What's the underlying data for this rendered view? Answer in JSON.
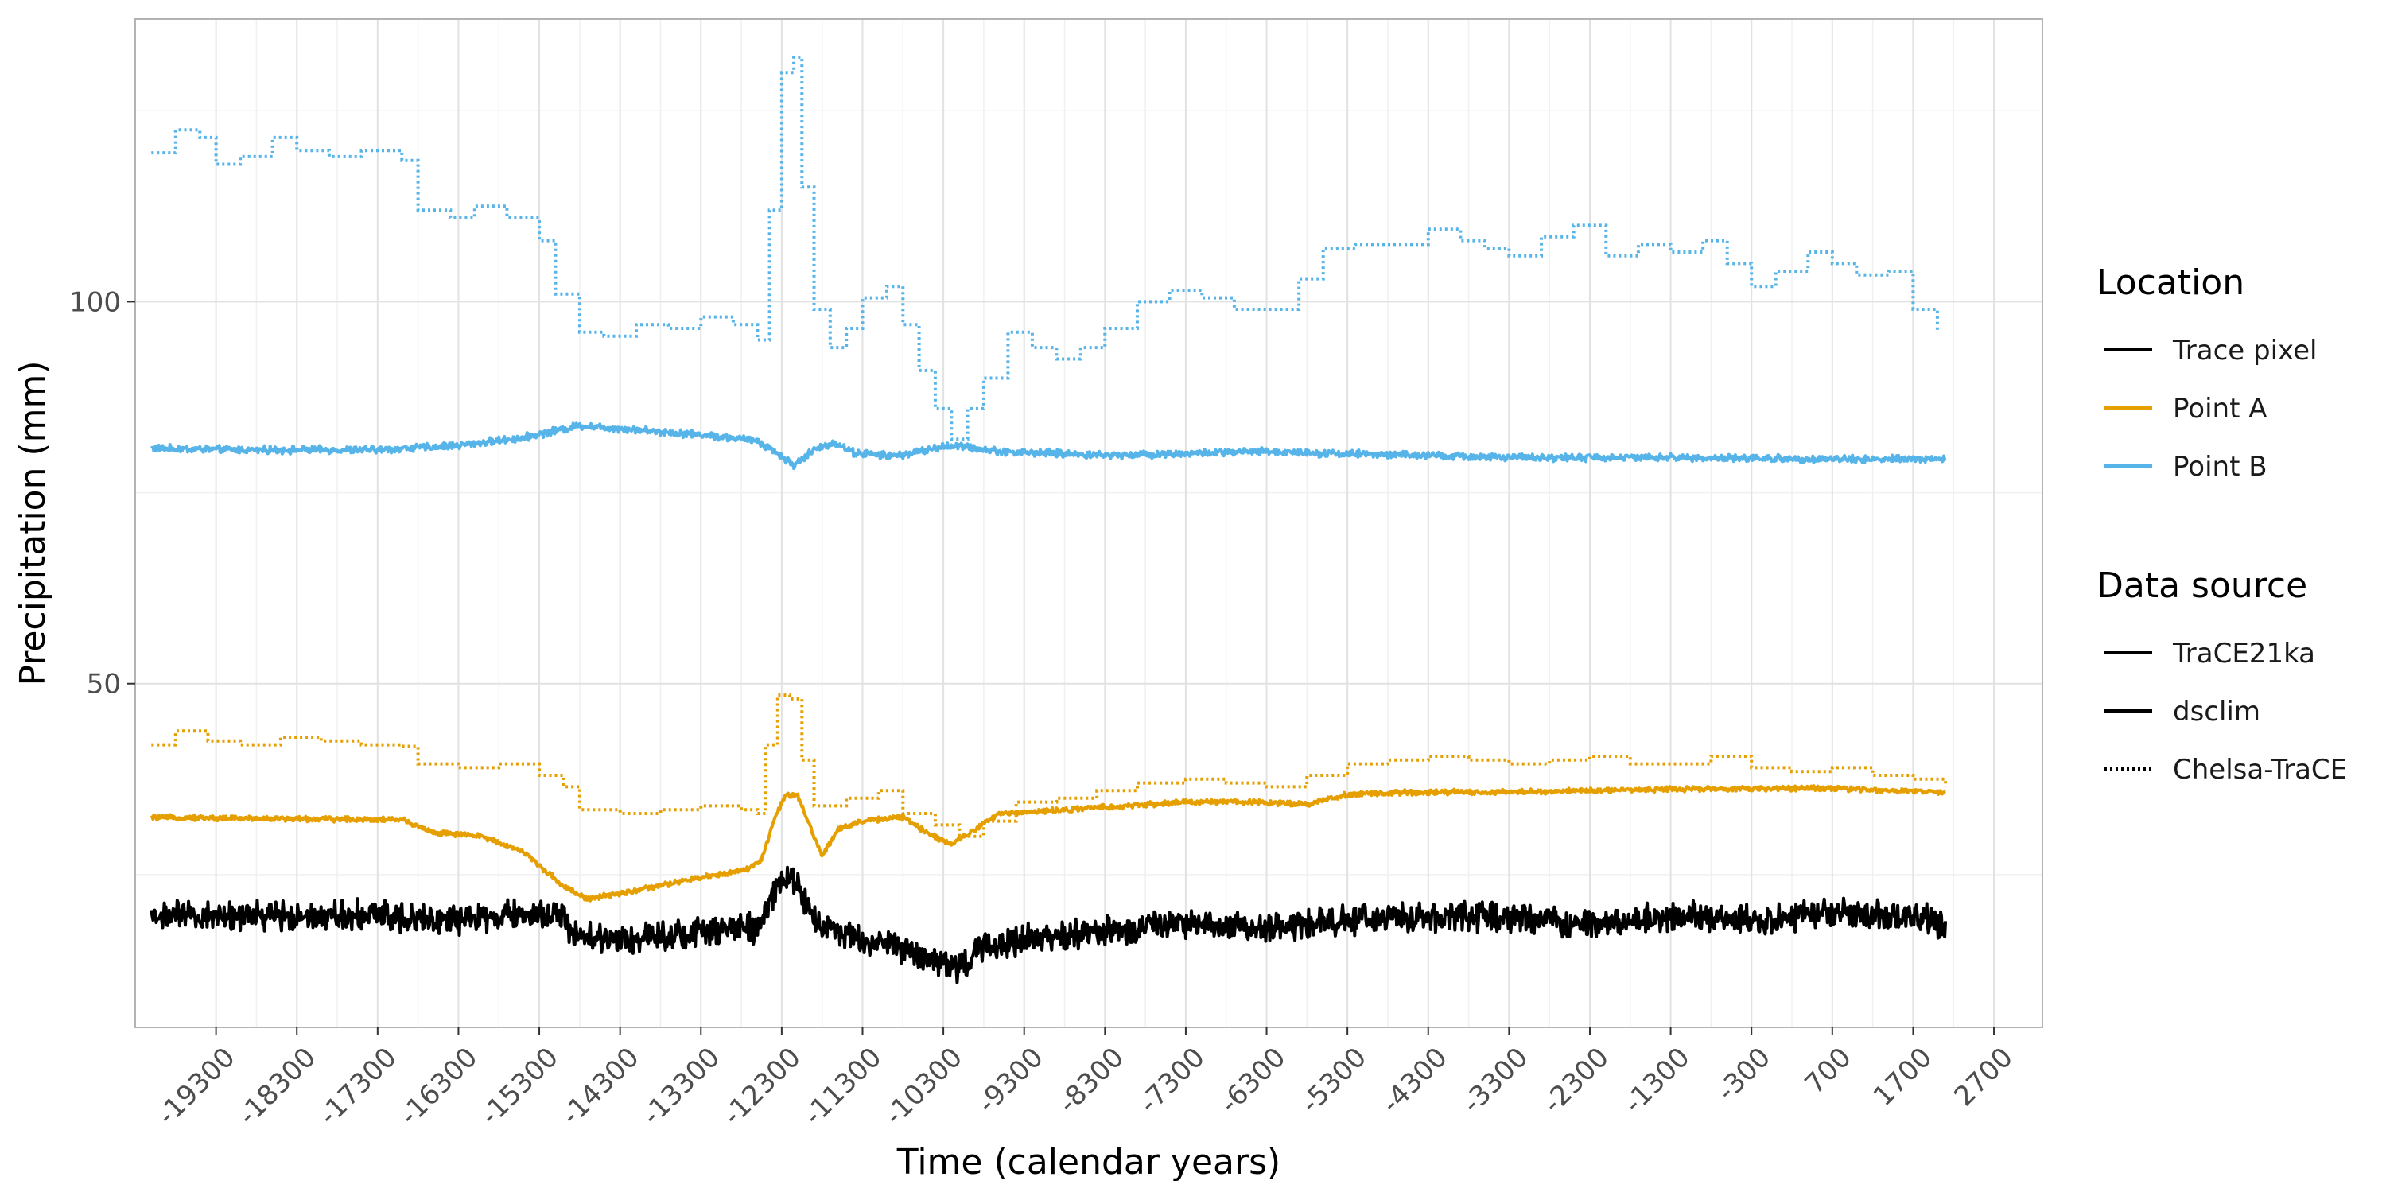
{
  "chart_data": {
    "type": "line",
    "title": "",
    "xlabel": "Time (calendar years)",
    "ylabel": "Precipitation (mm)",
    "xlim": [
      -20300,
      3300
    ],
    "ylim": [
      5,
      137
    ],
    "x_ticks": [
      -19300,
      -18300,
      -17300,
      -16300,
      -15300,
      -14300,
      -13300,
      -12300,
      -11300,
      -10300,
      -9300,
      -8300,
      -7300,
      -6300,
      -5300,
      -4300,
      -3300,
      -2300,
      -1300,
      -300,
      700,
      1700,
      2700
    ],
    "x_tick_labels": [
      "-19300",
      "-18300",
      "-17300",
      "-16300",
      "-15300",
      "-14300",
      "-13300",
      "-12300",
      "-11300",
      "-10300",
      "-9300",
      "-8300",
      "-7300",
      "-6300",
      "-5300",
      "-4300",
      "-3300",
      "-2300",
      "-1300",
      "-300",
      "700",
      "1700",
      "2700"
    ],
    "y_ticks": [
      50,
      100
    ],
    "y_tick_labels": [
      "50",
      "100"
    ],
    "grid": true,
    "legend_position": "right",
    "legends": [
      {
        "title": "Location",
        "entries": [
          {
            "label": "Trace pixel",
            "color": "#000000",
            "dash": "solid"
          },
          {
            "label": "Point A",
            "color": "#E69F00",
            "dash": "solid"
          },
          {
            "label": "Point B",
            "color": "#56B4E9",
            "dash": "solid"
          }
        ]
      },
      {
        "title": "Data source",
        "entries": [
          {
            "label": "TraCE21ka",
            "color": "#000000",
            "dash": "solid"
          },
          {
            "label": "dsclim",
            "color": "#000000",
            "dash": "solid"
          },
          {
            "label": "Chelsa-TraCE",
            "color": "#000000",
            "dash": "dotted"
          }
        ]
      }
    ],
    "series": [
      {
        "location": "Point B",
        "source": "dsclim",
        "color": "#56B4E9",
        "dash": "solid",
        "noise": 0.35,
        "points": [
          [
            -20100,
            80.8
          ],
          [
            -19000,
            80.6
          ],
          [
            -17300,
            80.6
          ],
          [
            -16300,
            81.2
          ],
          [
            -15500,
            82.2
          ],
          [
            -14800,
            83.8
          ],
          [
            -14300,
            83.4
          ],
          [
            -13300,
            82.6
          ],
          [
            -12600,
            81.8
          ],
          [
            -12400,
            80.5
          ],
          [
            -12150,
            78.6
          ],
          [
            -11900,
            80.6
          ],
          [
            -11650,
            81.6
          ],
          [
            -11400,
            80.2
          ],
          [
            -10900,
            79.8
          ],
          [
            -10400,
            80.8
          ],
          [
            -10200,
            81.2
          ],
          [
            -9600,
            80.4
          ],
          [
            -8300,
            79.9
          ],
          [
            -6300,
            80.4
          ],
          [
            -5300,
            80.1
          ],
          [
            -3300,
            79.6
          ],
          [
            -1300,
            79.6
          ],
          [
            700,
            79.4
          ],
          [
            2100,
            79.4
          ]
        ]
      },
      {
        "location": "Point B",
        "source": "Chelsa-TraCE",
        "color": "#56B4E9",
        "dash": "dotted",
        "noise": 0,
        "points": [
          [
            -20100,
            119.5
          ],
          [
            -19800,
            122.5
          ],
          [
            -19500,
            121.5
          ],
          [
            -19300,
            118.0
          ],
          [
            -19000,
            119.0
          ],
          [
            -18600,
            121.5
          ],
          [
            -18300,
            119.8
          ],
          [
            -17900,
            119.0
          ],
          [
            -17500,
            119.8
          ],
          [
            -17000,
            118.5
          ],
          [
            -16800,
            112.0
          ],
          [
            -16400,
            111.0
          ],
          [
            -16100,
            112.5
          ],
          [
            -15700,
            111.0
          ],
          [
            -15300,
            108.0
          ],
          [
            -15100,
            101.0
          ],
          [
            -14800,
            96.0
          ],
          [
            -14500,
            95.5
          ],
          [
            -14100,
            97.0
          ],
          [
            -13700,
            96.5
          ],
          [
            -13300,
            98.0
          ],
          [
            -12900,
            97.0
          ],
          [
            -12600,
            95.0
          ],
          [
            -12450,
            112.0
          ],
          [
            -12300,
            130.0
          ],
          [
            -12150,
            132.0
          ],
          [
            -12050,
            115.0
          ],
          [
            -11900,
            99.0
          ],
          [
            -11700,
            94.0
          ],
          [
            -11500,
            96.5
          ],
          [
            -11300,
            100.5
          ],
          [
            -11000,
            102.0
          ],
          [
            -10800,
            97.0
          ],
          [
            -10600,
            91.0
          ],
          [
            -10400,
            86.0
          ],
          [
            -10200,
            82.0
          ],
          [
            -10000,
            86.0
          ],
          [
            -9800,
            90.0
          ],
          [
            -9500,
            96.0
          ],
          [
            -9200,
            94.0
          ],
          [
            -8900,
            92.5
          ],
          [
            -8600,
            94.0
          ],
          [
            -8300,
            96.5
          ],
          [
            -7900,
            100.0
          ],
          [
            -7500,
            101.5
          ],
          [
            -7100,
            100.5
          ],
          [
            -6700,
            99.0
          ],
          [
            -6300,
            99.0
          ],
          [
            -5900,
            103.0
          ],
          [
            -5600,
            107.0
          ],
          [
            -5200,
            107.5
          ],
          [
            -4800,
            107.5
          ],
          [
            -4300,
            109.5
          ],
          [
            -3900,
            108.0
          ],
          [
            -3600,
            107.0
          ],
          [
            -3300,
            106.0
          ],
          [
            -2900,
            108.5
          ],
          [
            -2500,
            110.0
          ],
          [
            -2100,
            106.0
          ],
          [
            -1700,
            107.5
          ],
          [
            -1300,
            106.5
          ],
          [
            -900,
            108.0
          ],
          [
            -600,
            105.0
          ],
          [
            -300,
            102.0
          ],
          [
            0,
            104.0
          ],
          [
            400,
            106.5
          ],
          [
            700,
            105.0
          ],
          [
            1000,
            103.5
          ],
          [
            1400,
            104.0
          ],
          [
            1700,
            99.0
          ],
          [
            2000,
            96.0
          ]
        ]
      },
      {
        "location": "Point A",
        "source": "dsclim",
        "color": "#E69F00",
        "dash": "solid",
        "noise": 0.25,
        "points": [
          [
            -20100,
            32.5
          ],
          [
            -18300,
            32.3
          ],
          [
            -17000,
            32.2
          ],
          [
            -16600,
            30.5
          ],
          [
            -16000,
            30.0
          ],
          [
            -15500,
            28.0
          ],
          [
            -15000,
            23.5
          ],
          [
            -14700,
            21.8
          ],
          [
            -14300,
            22.5
          ],
          [
            -13500,
            24.2
          ],
          [
            -12700,
            25.8
          ],
          [
            -12550,
            27.0
          ],
          [
            -12400,
            32.0
          ],
          [
            -12250,
            35.5
          ],
          [
            -12100,
            35.2
          ],
          [
            -11900,
            30.0
          ],
          [
            -11800,
            27.5
          ],
          [
            -11600,
            31.0
          ],
          [
            -11300,
            32.0
          ],
          [
            -10800,
            32.5
          ],
          [
            -10500,
            30.5
          ],
          [
            -10200,
            29.0
          ],
          [
            -9900,
            31.0
          ],
          [
            -9600,
            33.0
          ],
          [
            -8300,
            33.8
          ],
          [
            -7300,
            34.5
          ],
          [
            -6300,
            34.5
          ],
          [
            -5800,
            34.2
          ],
          [
            -5300,
            35.5
          ],
          [
            -4300,
            35.8
          ],
          [
            -3300,
            35.8
          ],
          [
            -1300,
            36.2
          ],
          [
            700,
            36.3
          ],
          [
            2100,
            35.8
          ]
        ]
      },
      {
        "location": "Point A",
        "source": "Chelsa-TraCE",
        "color": "#E69F00",
        "dash": "dotted",
        "noise": 0,
        "points": [
          [
            -20100,
            42.0
          ],
          [
            -19800,
            43.8
          ],
          [
            -19400,
            42.5
          ],
          [
            -19000,
            42.0
          ],
          [
            -18500,
            43.0
          ],
          [
            -18000,
            42.5
          ],
          [
            -17500,
            42.0
          ],
          [
            -17000,
            41.8
          ],
          [
            -16800,
            39.5
          ],
          [
            -16300,
            39.0
          ],
          [
            -15800,
            39.5
          ],
          [
            -15300,
            38.0
          ],
          [
            -15000,
            36.5
          ],
          [
            -14800,
            33.5
          ],
          [
            -14300,
            33.0
          ],
          [
            -13800,
            33.5
          ],
          [
            -13300,
            34.0
          ],
          [
            -12800,
            33.5
          ],
          [
            -12600,
            33.0
          ],
          [
            -12500,
            42.0
          ],
          [
            -12350,
            48.5
          ],
          [
            -12200,
            48.0
          ],
          [
            -12050,
            40.0
          ],
          [
            -11900,
            34.0
          ],
          [
            -11500,
            35.0
          ],
          [
            -11100,
            36.0
          ],
          [
            -10800,
            33.0
          ],
          [
            -10400,
            31.5
          ],
          [
            -10100,
            30.0
          ],
          [
            -9800,
            32.0
          ],
          [
            -9400,
            34.5
          ],
          [
            -8900,
            35.0
          ],
          [
            -8400,
            36.0
          ],
          [
            -7900,
            37.0
          ],
          [
            -7300,
            37.5
          ],
          [
            -6800,
            37.0
          ],
          [
            -6300,
            36.5
          ],
          [
            -5800,
            38.0
          ],
          [
            -5300,
            39.5
          ],
          [
            -4800,
            40.0
          ],
          [
            -4300,
            40.5
          ],
          [
            -3800,
            40.0
          ],
          [
            -3300,
            39.5
          ],
          [
            -2800,
            40.0
          ],
          [
            -2300,
            40.5
          ],
          [
            -1800,
            39.5
          ],
          [
            -1300,
            39.5
          ],
          [
            -800,
            40.5
          ],
          [
            -300,
            39.0
          ],
          [
            200,
            38.5
          ],
          [
            700,
            39.0
          ],
          [
            1200,
            38.0
          ],
          [
            1700,
            37.5
          ],
          [
            2100,
            36.5
          ]
        ]
      },
      {
        "location": "Trace pixel",
        "source": "TraCE21ka",
        "color": "#000000",
        "dash": "solid",
        "noise": 1.4,
        "points": [
          [
            -20100,
            19.5
          ],
          [
            -17300,
            19.8
          ],
          [
            -16300,
            19.0
          ],
          [
            -15300,
            20.0
          ],
          [
            -15000,
            19.5
          ],
          [
            -14900,
            17.0
          ],
          [
            -14300,
            16.5
          ],
          [
            -13300,
            17.5
          ],
          [
            -12600,
            18.0
          ],
          [
            -12450,
            21.0
          ],
          [
            -12300,
            24.0
          ],
          [
            -12150,
            24.5
          ],
          [
            -12000,
            21.5
          ],
          [
            -11800,
            18.0
          ],
          [
            -11300,
            16.5
          ],
          [
            -10800,
            15.5
          ],
          [
            -10300,
            13.5
          ],
          [
            -10100,
            12.5
          ],
          [
            -9800,
            15.5
          ],
          [
            -9300,
            16.5
          ],
          [
            -8300,
            17.5
          ],
          [
            -7300,
            18.5
          ],
          [
            -6300,
            18.0
          ],
          [
            -5300,
            19.0
          ],
          [
            -4300,
            19.5
          ],
          [
            -3300,
            19.5
          ],
          [
            -2300,
            18.5
          ],
          [
            -1300,
            19.5
          ],
          [
            -300,
            19.0
          ],
          [
            700,
            20.0
          ],
          [
            1700,
            19.5
          ],
          [
            2100,
            18.5
          ]
        ]
      }
    ]
  }
}
